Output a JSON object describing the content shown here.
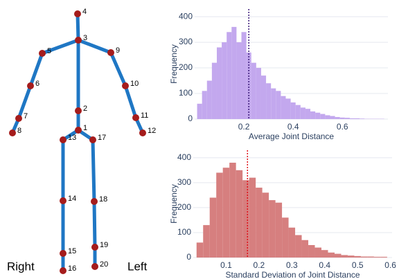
{
  "skeleton": {
    "nodes": [
      "1",
      "2",
      "3",
      "4",
      "5",
      "6",
      "7",
      "8",
      "9",
      "10",
      "11",
      "12",
      "13",
      "14",
      "15",
      "16",
      "17",
      "18",
      "19",
      "20"
    ],
    "side_labels": [
      "Right",
      "Left"
    ]
  },
  "chart_data": [
    {
      "type": "histogram",
      "x_label": "Average Joint Distance",
      "y_label": "Frequency",
      "color": "#c3a8ee",
      "vline": {
        "value": 0.22,
        "color": "#3b1a7a"
      },
      "bins": [
        0.01,
        0.03,
        0.05,
        0.07,
        0.09,
        0.11,
        0.13,
        0.15,
        0.17,
        0.19,
        0.21,
        0.23,
        0.25,
        0.27,
        0.29,
        0.31,
        0.33,
        0.35,
        0.37,
        0.39,
        0.41,
        0.43,
        0.45,
        0.47,
        0.49,
        0.51,
        0.53,
        0.55,
        0.57,
        0.59,
        0.61,
        0.63,
        0.65,
        0.67,
        0.69,
        0.71,
        0.73,
        0.75,
        0.77
      ],
      "counts": [
        60,
        110,
        150,
        220,
        280,
        300,
        340,
        360,
        300,
        340,
        260,
        220,
        200,
        170,
        140,
        120,
        110,
        90,
        80,
        65,
        55,
        45,
        40,
        30,
        25,
        20,
        15,
        12,
        8,
        6,
        5,
        3,
        3,
        2,
        1,
        1,
        1,
        1
      ],
      "xlim": [
        0,
        0.785
      ],
      "xticks": [
        0.2,
        0.4,
        0.6
      ],
      "ylim": [
        0,
        430
      ],
      "yticks": [
        0,
        100,
        200,
        300,
        400
      ],
      "grid": true
    },
    {
      "type": "histogram",
      "x_label": "Standard Deviation of Joint Distance",
      "y_label": "Frequency",
      "color": "#d67f7f",
      "vline": {
        "value": 0.165,
        "color": "#e0101a"
      },
      "bins": [
        0.01,
        0.03,
        0.05,
        0.07,
        0.09,
        0.11,
        0.13,
        0.15,
        0.17,
        0.19,
        0.21,
        0.23,
        0.25,
        0.27,
        0.29,
        0.31,
        0.33,
        0.35,
        0.37,
        0.39,
        0.41,
        0.43,
        0.45,
        0.47,
        0.49,
        0.51,
        0.53,
        0.55,
        0.57,
        0.59
      ],
      "counts": [
        60,
        130,
        240,
        340,
        360,
        380,
        350,
        310,
        320,
        280,
        260,
        230,
        220,
        160,
        120,
        90,
        70,
        50,
        40,
        30,
        20,
        15,
        10,
        8,
        6,
        4,
        4,
        3,
        3
      ],
      "xlim": [
        0,
        0.605
      ],
      "xticks": [
        0.1,
        0.2,
        0.3,
        0.4,
        0.5,
        0.6
      ],
      "ylim": [
        0,
        430
      ],
      "yticks": [
        0,
        100,
        200,
        300,
        400
      ],
      "grid": true
    }
  ]
}
